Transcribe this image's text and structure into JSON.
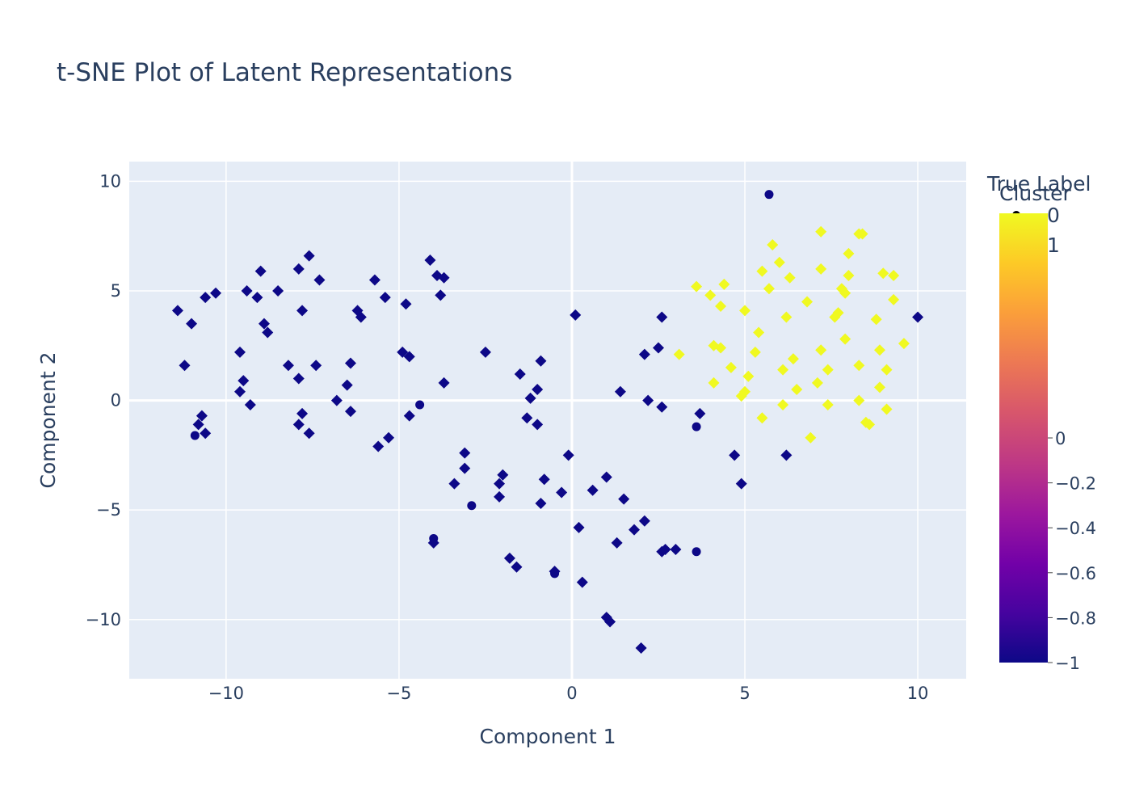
{
  "chart_data": {
    "type": "scatter",
    "title": "t-SNE Plot of Latent Representations",
    "xlabel": "Component 1",
    "ylabel": "Component 2",
    "xlim": [
      -12.8,
      11.4
    ],
    "ylim": [
      -12.7,
      10.9
    ],
    "xticks": [
      -10,
      -5,
      0,
      5,
      10
    ],
    "xtick_labels": [
      "−10",
      "−5",
      "0",
      "5",
      "10"
    ],
    "yticks": [
      10,
      5,
      0,
      -5,
      -10
    ],
    "ytick_labels": [
      "10",
      "5",
      "0",
      "−5",
      "−10"
    ],
    "grid": true,
    "plot_bgcolor": "#e5ecf6",
    "legend": {
      "title": "True Label",
      "entries": [
        {
          "label": "0",
          "symbol": "circle"
        },
        {
          "label": "1",
          "symbol": "diamond"
        }
      ],
      "placement": "top-right"
    },
    "colorbar": {
      "title": "Cluster",
      "range": [
        -1,
        1
      ],
      "ticks": [
        -1,
        -0.8,
        -0.6,
        -0.4,
        -0.2,
        0
      ],
      "tick_labels": [
        "−1",
        "−0.8",
        "−0.6",
        "−0.4",
        "−0.2",
        "0"
      ],
      "colorscale": [
        "#0d0887",
        "#46039f",
        "#7201a8",
        "#9c179e",
        "#bd3786",
        "#d8576b",
        "#ed7953",
        "#fb9f3a",
        "#fdca26",
        "#f0f921"
      ]
    },
    "marker_colors": {
      "cluster_low": "#0d0887",
      "cluster_high": "#f0f921"
    },
    "series": [
      {
        "symbol": "circle",
        "cluster": -1,
        "points": [
          [
            5.7,
            9.4
          ],
          [
            -10.9,
            -1.6
          ],
          [
            -4.4,
            -0.2
          ],
          [
            -2.9,
            -4.8
          ],
          [
            -4.0,
            -6.3
          ],
          [
            -0.5,
            -7.9
          ],
          [
            3.6,
            -1.2
          ],
          [
            3.6,
            -6.9
          ]
        ]
      },
      {
        "symbol": "diamond",
        "cluster": -1,
        "points": [
          [
            -11.4,
            4.1
          ],
          [
            -11.0,
            3.5
          ],
          [
            -11.2,
            1.6
          ],
          [
            -10.6,
            4.7
          ],
          [
            -10.3,
            4.9
          ],
          [
            -10.7,
            -0.7
          ],
          [
            -10.8,
            -1.1
          ],
          [
            -10.6,
            -1.5
          ],
          [
            -9.6,
            2.2
          ],
          [
            -9.5,
            0.9
          ],
          [
            -9.4,
            5.0
          ],
          [
            -9.1,
            4.7
          ],
          [
            -9.0,
            5.9
          ],
          [
            -8.9,
            3.5
          ],
          [
            -8.8,
            3.1
          ],
          [
            -9.3,
            -0.2
          ],
          [
            -9.6,
            0.4
          ],
          [
            -8.5,
            5.0
          ],
          [
            -8.2,
            1.6
          ],
          [
            -7.9,
            6.0
          ],
          [
            -7.9,
            1.0
          ],
          [
            -7.8,
            4.1
          ],
          [
            -7.6,
            6.6
          ],
          [
            -7.3,
            5.5
          ],
          [
            -7.4,
            1.6
          ],
          [
            -7.8,
            -0.6
          ],
          [
            -7.9,
            -1.1
          ],
          [
            -7.6,
            -1.5
          ],
          [
            -6.8,
            0.0
          ],
          [
            -6.5,
            0.7
          ],
          [
            -6.4,
            1.7
          ],
          [
            -6.2,
            4.1
          ],
          [
            -6.1,
            3.8
          ],
          [
            -6.4,
            -0.5
          ],
          [
            -5.7,
            5.5
          ],
          [
            -5.4,
            4.7
          ],
          [
            -5.6,
            -2.1
          ],
          [
            -5.3,
            -1.7
          ],
          [
            -4.9,
            2.2
          ],
          [
            -4.7,
            2.0
          ],
          [
            -4.8,
            4.4
          ],
          [
            -4.7,
            -0.7
          ],
          [
            -4.1,
            6.4
          ],
          [
            -3.9,
            5.7
          ],
          [
            -3.7,
            5.6
          ],
          [
            -3.8,
            4.8
          ],
          [
            -3.7,
            0.8
          ],
          [
            -4.0,
            -6.5
          ],
          [
            -3.4,
            -3.8
          ],
          [
            -3.1,
            -2.4
          ],
          [
            -3.1,
            -3.1
          ],
          [
            -2.5,
            2.2
          ],
          [
            -2.1,
            -3.8
          ],
          [
            -2.1,
            -4.4
          ],
          [
            -2.0,
            -3.4
          ],
          [
            -1.8,
            -7.2
          ],
          [
            -1.6,
            -7.6
          ],
          [
            -1.5,
            1.2
          ],
          [
            -1.3,
            -0.8
          ],
          [
            -1.2,
            0.1
          ],
          [
            -1.0,
            0.5
          ],
          [
            -1.0,
            -1.1
          ],
          [
            -0.9,
            1.8
          ],
          [
            -0.9,
            -4.7
          ],
          [
            -0.8,
            -3.6
          ],
          [
            -0.5,
            -7.8
          ],
          [
            -0.3,
            -4.2
          ],
          [
            -0.1,
            -2.5
          ],
          [
            0.1,
            3.9
          ],
          [
            0.2,
            -5.8
          ],
          [
            0.3,
            -8.3
          ],
          [
            0.6,
            -4.1
          ],
          [
            1.0,
            -3.5
          ],
          [
            1.0,
            -9.9
          ],
          [
            1.1,
            -10.1
          ],
          [
            1.3,
            -6.5
          ],
          [
            1.4,
            0.4
          ],
          [
            1.5,
            -4.5
          ],
          [
            1.8,
            -5.9
          ],
          [
            2.0,
            -11.3
          ],
          [
            2.1,
            -5.5
          ],
          [
            2.1,
            2.1
          ],
          [
            2.2,
            0.0
          ],
          [
            2.5,
            2.4
          ],
          [
            2.6,
            -6.9
          ],
          [
            2.7,
            -6.8
          ],
          [
            2.6,
            -0.3
          ],
          [
            2.6,
            3.8
          ],
          [
            3.0,
            -6.8
          ],
          [
            3.7,
            -0.6
          ],
          [
            4.7,
            -2.5
          ],
          [
            4.9,
            -3.8
          ],
          [
            6.2,
            -2.5
          ],
          [
            10.0,
            3.8
          ]
        ]
      },
      {
        "symbol": "diamond",
        "cluster": 0,
        "points": [
          [
            3.1,
            2.1
          ],
          [
            3.6,
            5.2
          ],
          [
            4.0,
            4.8
          ],
          [
            4.1,
            2.5
          ],
          [
            4.3,
            4.3
          ],
          [
            4.3,
            2.4
          ],
          [
            4.4,
            5.3
          ],
          [
            4.1,
            0.8
          ],
          [
            4.6,
            1.5
          ],
          [
            4.9,
            0.2
          ],
          [
            5.0,
            0.4
          ],
          [
            5.0,
            4.1
          ],
          [
            5.1,
            1.1
          ],
          [
            5.3,
            2.2
          ],
          [
            5.4,
            3.1
          ],
          [
            5.5,
            -0.8
          ],
          [
            5.5,
            5.9
          ],
          [
            5.7,
            5.1
          ],
          [
            5.8,
            7.1
          ],
          [
            6.0,
            6.3
          ],
          [
            6.1,
            1.4
          ],
          [
            6.2,
            3.8
          ],
          [
            6.1,
            -0.2
          ],
          [
            6.3,
            5.6
          ],
          [
            6.4,
            1.9
          ],
          [
            6.5,
            0.5
          ],
          [
            6.8,
            4.5
          ],
          [
            6.9,
            -1.7
          ],
          [
            7.1,
            0.8
          ],
          [
            7.2,
            7.7
          ],
          [
            7.2,
            6.0
          ],
          [
            7.2,
            2.3
          ],
          [
            7.4,
            1.4
          ],
          [
            7.4,
            -0.2
          ],
          [
            7.6,
            3.8
          ],
          [
            7.7,
            4.0
          ],
          [
            7.8,
            5.1
          ],
          [
            7.9,
            4.9
          ],
          [
            7.9,
            2.8
          ],
          [
            8.0,
            6.7
          ],
          [
            8.0,
            5.7
          ],
          [
            8.3,
            1.6
          ],
          [
            8.3,
            7.6
          ],
          [
            8.4,
            7.6
          ],
          [
            8.3,
            0.0
          ],
          [
            8.5,
            -1.0
          ],
          [
            8.6,
            -1.1
          ],
          [
            8.8,
            3.7
          ],
          [
            8.9,
            0.6
          ],
          [
            8.9,
            2.3
          ],
          [
            9.0,
            5.8
          ],
          [
            9.1,
            1.4
          ],
          [
            9.1,
            -0.4
          ],
          [
            9.3,
            5.7
          ],
          [
            9.3,
            4.6
          ],
          [
            9.6,
            2.6
          ]
        ]
      }
    ]
  }
}
